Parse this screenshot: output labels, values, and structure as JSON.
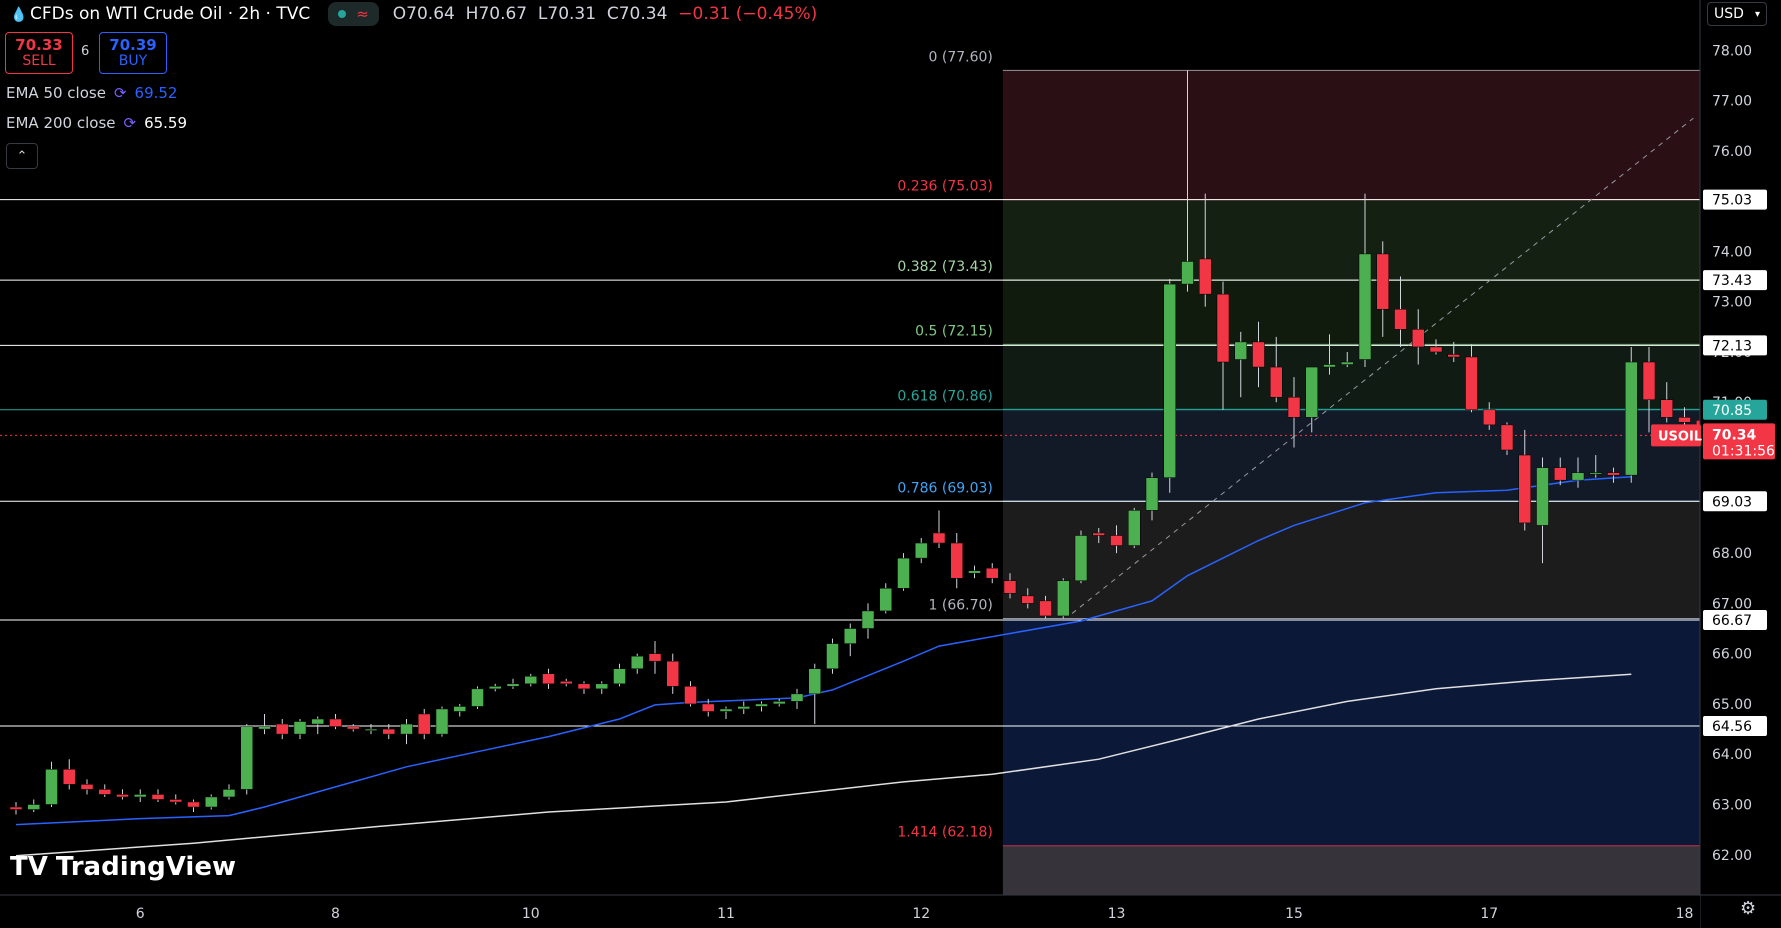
{
  "header": {
    "title": "CFDs on WTI Crude Oil · 2h · TVC",
    "ohlc": {
      "open": "O70.64",
      "high": "H70.67",
      "low": "L70.31",
      "close": "C70.34",
      "change": "−0.31 (−0.45%)"
    }
  },
  "trade": {
    "sell_price": "70.33",
    "sell_label": "SELL",
    "spread": "6",
    "buy_price": "70.39",
    "buy_label": "BUY"
  },
  "indicators": [
    {
      "label": "EMA 50 close",
      "value": "69.52",
      "color": "#2962ff"
    },
    {
      "label": "EMA 200 close",
      "value": "65.59",
      "color": "#ffffff"
    }
  ],
  "currency": "USD",
  "brand": "TradingView",
  "chart_data": {
    "type": "candlestick",
    "symbol": "USOIL",
    "last_price": "70.34",
    "countdown": "01:31:56",
    "ylim": [
      61.2,
      79.0
    ],
    "y_ticks": [
      "62.00",
      "63.00",
      "64.00",
      "65.00",
      "66.00",
      "67.00",
      "68.00",
      "69.00",
      "70.00",
      "71.00",
      "72.00",
      "73.00",
      "74.00",
      "75.00",
      "76.00",
      "77.00",
      "78.00"
    ],
    "x_ticks": [
      {
        "label": "6",
        "index": 7
      },
      {
        "label": "8",
        "index": 18
      },
      {
        "label": "10",
        "index": 29
      },
      {
        "label": "11",
        "index": 40
      },
      {
        "label": "12",
        "index": 51
      },
      {
        "label": "13",
        "index": 62
      },
      {
        "label": "15",
        "index": 72
      },
      {
        "label": "17",
        "index": 83
      },
      {
        "label": "18",
        "index": 94
      }
    ],
    "candles": [
      [
        62.95,
        63.05,
        62.8,
        62.9
      ],
      [
        62.9,
        63.1,
        62.85,
        63.0
      ],
      [
        63.0,
        63.85,
        62.95,
        63.7
      ],
      [
        63.7,
        63.9,
        63.3,
        63.4
      ],
      [
        63.4,
        63.5,
        63.2,
        63.3
      ],
      [
        63.3,
        63.4,
        63.15,
        63.2
      ],
      [
        63.2,
        63.3,
        63.1,
        63.15
      ],
      [
        63.15,
        63.3,
        63.05,
        63.2
      ],
      [
        63.2,
        63.3,
        63.05,
        63.1
      ],
      [
        63.1,
        63.2,
        63.0,
        63.05
      ],
      [
        63.05,
        63.1,
        62.85,
        62.95
      ],
      [
        62.95,
        63.2,
        62.9,
        63.15
      ],
      [
        63.15,
        63.4,
        63.1,
        63.3
      ],
      [
        63.3,
        64.6,
        63.2,
        64.55
      ],
      [
        64.5,
        64.8,
        64.4,
        64.55
      ],
      [
        64.6,
        64.7,
        64.3,
        64.4
      ],
      [
        64.4,
        64.7,
        64.3,
        64.65
      ],
      [
        64.6,
        64.75,
        64.4,
        64.7
      ],
      [
        64.7,
        64.8,
        64.5,
        64.55
      ],
      [
        64.55,
        64.6,
        64.45,
        64.5
      ],
      [
        64.5,
        64.6,
        64.4,
        64.5
      ],
      [
        64.5,
        64.6,
        64.3,
        64.4
      ],
      [
        64.4,
        64.7,
        64.2,
        64.6
      ],
      [
        64.8,
        64.9,
        64.3,
        64.4
      ],
      [
        64.4,
        64.95,
        64.35,
        64.9
      ],
      [
        64.85,
        65.0,
        64.75,
        64.95
      ],
      [
        64.95,
        65.35,
        64.9,
        65.3
      ],
      [
        65.3,
        65.4,
        65.25,
        65.35
      ],
      [
        65.35,
        65.5,
        65.3,
        65.4
      ],
      [
        65.4,
        65.6,
        65.35,
        65.55
      ],
      [
        65.6,
        65.7,
        65.3,
        65.4
      ],
      [
        65.45,
        65.5,
        65.35,
        65.4
      ],
      [
        65.4,
        65.45,
        65.2,
        65.3
      ],
      [
        65.3,
        65.45,
        65.2,
        65.4
      ],
      [
        65.4,
        65.8,
        65.35,
        65.7
      ],
      [
        65.7,
        66.0,
        65.6,
        65.95
      ],
      [
        66.0,
        66.25,
        65.6,
        65.85
      ],
      [
        65.85,
        66.0,
        65.2,
        65.35
      ],
      [
        65.35,
        65.45,
        64.95,
        65.0
      ],
      [
        65.0,
        65.1,
        64.75,
        64.85
      ],
      [
        64.85,
        64.95,
        64.7,
        64.9
      ],
      [
        64.9,
        65.05,
        64.8,
        64.95
      ],
      [
        64.95,
        65.05,
        64.85,
        65.0
      ],
      [
        65.0,
        65.1,
        64.95,
        65.05
      ],
      [
        65.05,
        65.3,
        64.9,
        65.2
      ],
      [
        65.2,
        65.8,
        64.6,
        65.7
      ],
      [
        65.7,
        66.3,
        65.6,
        66.2
      ],
      [
        66.2,
        66.6,
        65.95,
        66.5
      ],
      [
        66.5,
        67.0,
        66.3,
        66.85
      ],
      [
        66.85,
        67.4,
        66.8,
        67.3
      ],
      [
        67.3,
        68.0,
        67.25,
        67.9
      ],
      [
        67.9,
        68.3,
        67.8,
        68.2
      ],
      [
        68.4,
        68.85,
        68.1,
        68.2
      ],
      [
        68.2,
        68.4,
        67.3,
        67.5
      ],
      [
        67.6,
        67.75,
        67.5,
        67.65
      ],
      [
        67.7,
        67.8,
        67.4,
        67.5
      ],
      [
        67.45,
        67.6,
        67.1,
        67.2
      ],
      [
        67.15,
        67.3,
        66.9,
        67.0
      ],
      [
        67.05,
        67.15,
        66.7,
        66.75
      ],
      [
        66.75,
        67.5,
        66.7,
        67.45
      ],
      [
        67.45,
        68.45,
        67.4,
        68.35
      ],
      [
        68.4,
        68.5,
        68.2,
        68.35
      ],
      [
        68.35,
        68.55,
        68.0,
        68.15
      ],
      [
        68.15,
        68.9,
        68.1,
        68.85
      ],
      [
        68.85,
        69.6,
        68.65,
        69.5
      ],
      [
        69.5,
        73.45,
        69.2,
        73.35
      ],
      [
        73.35,
        77.6,
        73.2,
        73.8
      ],
      [
        73.85,
        75.15,
        72.9,
        73.15
      ],
      [
        73.15,
        73.4,
        70.85,
        71.8
      ],
      [
        71.85,
        72.4,
        71.1,
        72.2
      ],
      [
        72.2,
        72.6,
        71.3,
        71.7
      ],
      [
        71.7,
        72.3,
        71.0,
        71.1
      ],
      [
        71.1,
        71.5,
        70.1,
        70.7
      ],
      [
        70.7,
        71.7,
        70.4,
        71.7
      ],
      [
        71.7,
        72.35,
        71.55,
        71.75
      ],
      [
        71.75,
        72.0,
        71.7,
        71.8
      ],
      [
        71.85,
        75.15,
        71.7,
        73.95
      ],
      [
        73.95,
        74.2,
        72.3,
        72.85
      ],
      [
        72.85,
        73.5,
        72.1,
        72.45
      ],
      [
        72.45,
        72.85,
        71.75,
        72.1
      ],
      [
        72.1,
        72.25,
        71.95,
        72.0
      ],
      [
        71.95,
        72.2,
        71.8,
        71.9
      ],
      [
        71.9,
        72.15,
        70.8,
        70.85
      ],
      [
        70.85,
        71.0,
        70.45,
        70.55
      ],
      [
        70.55,
        70.6,
        69.95,
        70.05
      ],
      [
        69.95,
        70.45,
        68.45,
        68.6
      ],
      [
        68.55,
        69.9,
        67.8,
        69.7
      ],
      [
        69.7,
        69.9,
        69.35,
        69.45
      ],
      [
        69.45,
        69.9,
        69.3,
        69.6
      ],
      [
        69.6,
        69.95,
        69.5,
        69.6
      ],
      [
        69.6,
        69.7,
        69.4,
        69.55
      ],
      [
        69.55,
        72.1,
        69.4,
        71.8
      ],
      [
        71.8,
        72.1,
        70.4,
        71.05
      ],
      [
        71.05,
        71.4,
        70.6,
        70.7
      ],
      [
        70.7,
        70.9,
        70.5,
        70.6
      ],
      [
        70.64,
        70.67,
        70.31,
        70.34
      ]
    ],
    "ema50": [
      [
        0,
        62.6
      ],
      [
        7,
        62.72
      ],
      [
        12,
        62.78
      ],
      [
        14,
        62.95
      ],
      [
        18,
        63.35
      ],
      [
        22,
        63.75
      ],
      [
        26,
        64.05
      ],
      [
        30,
        64.35
      ],
      [
        34,
        64.7
      ],
      [
        36,
        64.98
      ],
      [
        38,
        65.03
      ],
      [
        44,
        65.12
      ],
      [
        46,
        65.28
      ],
      [
        50,
        65.85
      ],
      [
        52,
        66.15
      ],
      [
        56,
        66.4
      ],
      [
        60,
        66.65
      ],
      [
        62,
        66.85
      ],
      [
        64,
        67.05
      ],
      [
        66,
        67.55
      ],
      [
        68,
        67.9
      ],
      [
        70,
        68.25
      ],
      [
        72,
        68.55
      ],
      [
        76,
        69.0
      ],
      [
        80,
        69.2
      ],
      [
        84,
        69.25
      ],
      [
        88,
        69.45
      ],
      [
        91,
        69.52
      ]
    ],
    "ema200": [
      [
        0,
        61.98
      ],
      [
        10,
        62.23
      ],
      [
        20,
        62.55
      ],
      [
        30,
        62.85
      ],
      [
        40,
        63.05
      ],
      [
        50,
        63.45
      ],
      [
        55,
        63.6
      ],
      [
        61,
        63.9
      ],
      [
        65,
        64.25
      ],
      [
        70,
        64.7
      ],
      [
        75,
        65.05
      ],
      [
        80,
        65.3
      ],
      [
        85,
        65.45
      ],
      [
        91,
        65.59
      ]
    ],
    "fib_start_index": 55.6,
    "fibonacci": [
      {
        "ratio": "0",
        "label": "0 (77.60)",
        "price": 77.6,
        "color": "#b2b5be",
        "zone": "#2a0f14"
      },
      {
        "ratio": "0.236",
        "label": "0.236 (75.03)",
        "price": 75.03,
        "color": "#f23645",
        "zone": "#142112"
      },
      {
        "ratio": "0.382",
        "label": "0.382 (73.43)",
        "price": 73.43,
        "color": "#a5d6a7",
        "zone": "#101b0e"
      },
      {
        "ratio": "0.5",
        "label": "0.5 (72.15)",
        "price": 72.15,
        "color": "#81c784",
        "zone": "#0f1b13"
      },
      {
        "ratio": "0.618",
        "label": "0.618 (70.86)",
        "price": 70.86,
        "color": "#26a69a",
        "zone": "#111a26"
      },
      {
        "ratio": "0.786",
        "label": "0.786 (69.03)",
        "price": 69.03,
        "color": "#42a5f5",
        "zone": "#1c1c1c"
      },
      {
        "ratio": "1",
        "label": "1 (66.70)",
        "price": 66.7,
        "color": "#b2b5be",
        "zone": "#0b1838"
      },
      {
        "ratio": "1.414",
        "label": "1.414 (62.18)",
        "price": 62.18,
        "color": "#f23645",
        "zone": "#37333a"
      }
    ],
    "horizontal_lines": [
      {
        "price": 75.03,
        "label": "75.03"
      },
      {
        "price": 73.43,
        "label": "73.43"
      },
      {
        "price": 72.13,
        "label": "72.13"
      },
      {
        "price": 69.03,
        "label": "69.03"
      },
      {
        "price": 66.67,
        "label": "66.67"
      },
      {
        "price": 64.56,
        "label": "64.56"
      }
    ],
    "green_line": {
      "price": 70.85,
      "label": "70.85",
      "color": "#26a69a"
    },
    "trend_line": [
      [
        59.5,
        66.8
      ],
      [
        94.5,
        76.65
      ]
    ],
    "colors": {
      "up": "#4caf50",
      "down": "#f23645",
      "ema50": "#2962ff",
      "ema200": "#e0e0e0",
      "price_tag": "#f23645"
    }
  }
}
